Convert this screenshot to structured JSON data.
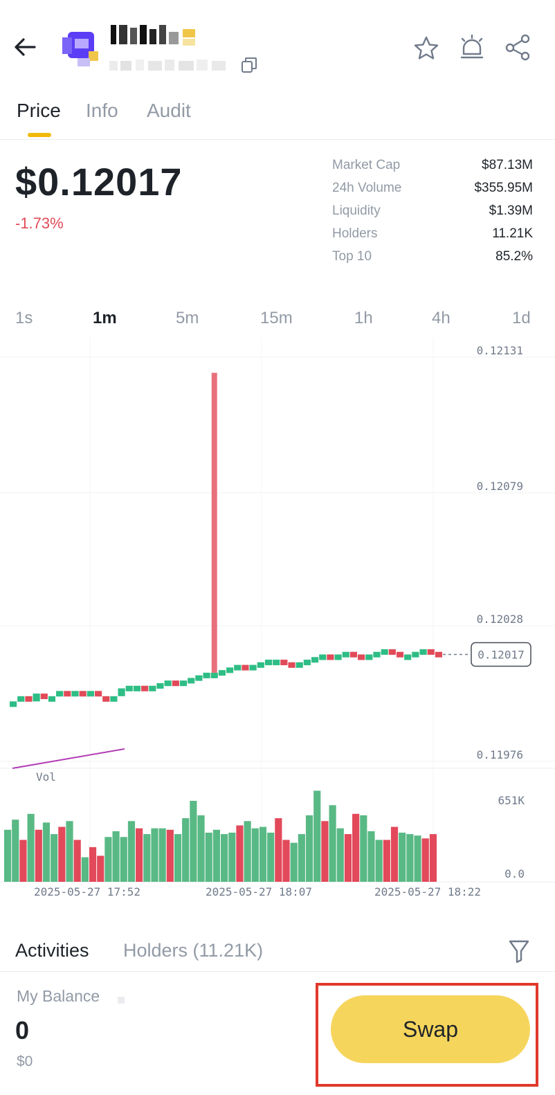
{
  "header": {
    "icons": [
      "back-arrow-icon",
      "star-icon",
      "alert-bell-icon",
      "share-icon",
      "copy-icon"
    ]
  },
  "tabs": [
    {
      "label": "Price",
      "active": true
    },
    {
      "label": "Info",
      "active": false
    },
    {
      "label": "Audit",
      "active": false
    }
  ],
  "price": {
    "value": "$0.12017",
    "change": "-1.73%",
    "change_color": "#e14a58"
  },
  "stats": [
    {
      "label": "Market Cap",
      "value": "$87.13M"
    },
    {
      "label": "24h Volume",
      "value": "$355.95M"
    },
    {
      "label": "Liquidity",
      "value": "$1.39M"
    },
    {
      "label": "Holders",
      "value": "11.21K"
    },
    {
      "label": "Top 10",
      "value": "85.2%"
    }
  ],
  "intervals": [
    {
      "label": "1s",
      "active": false
    },
    {
      "label": "1m",
      "active": true
    },
    {
      "label": "5m",
      "active": false
    },
    {
      "label": "15m",
      "active": false
    },
    {
      "label": "1h",
      "active": false
    },
    {
      "label": "4h",
      "active": false
    },
    {
      "label": "1d",
      "active": false
    }
  ],
  "chart_data": {
    "type": "candlestick",
    "y_ticks": [
      "0.12131",
      "0.12079",
      "0.12028",
      "0.11976"
    ],
    "ylim": [
      0.11976,
      0.12131
    ],
    "current_price_label": "0.12017",
    "volume_label": "Vol",
    "volume_ticks": [
      "651K",
      "0.0"
    ],
    "x_ticks": [
      "2025-05-27 17:52",
      "2025-05-27 18:07",
      "2025-05-27 18:22"
    ],
    "up_color": "#2ebd85",
    "down_color": "#e14a58",
    "closes": [
      0.11999,
      0.12001,
      0.11999,
      0.12002,
      0.12,
      0.12001,
      0.12003,
      0.12001,
      0.12003,
      0.12002,
      0.12003,
      0.12001,
      0.12,
      0.12001,
      0.12004,
      0.12005,
      0.12005,
      0.12004,
      0.12005,
      0.12006,
      0.12007,
      0.12006,
      0.12007,
      0.12008,
      0.12009,
      0.1201,
      0.1201,
      0.12011,
      0.12012,
      0.12013,
      0.12012,
      0.12013,
      0.12014,
      0.12015,
      0.12015,
      0.12014,
      0.12013,
      0.12014,
      0.12015,
      0.12016,
      0.12017,
      0.12016,
      0.12017,
      0.12018,
      0.12017,
      0.12016,
      0.12017,
      0.12018,
      0.12019,
      0.12018,
      0.12016,
      0.12017,
      0.12018,
      0.12019,
      0.12018,
      0.12017
    ],
    "spike_high": 0.12125,
    "spike_index": 26,
    "volumes": [
      360000,
      430000,
      290000,
      470000,
      360000,
      410000,
      330000,
      380000,
      420000,
      290000,
      170000,
      240000,
      180000,
      310000,
      350000,
      310000,
      420000,
      370000,
      330000,
      370000,
      370000,
      360000,
      330000,
      440000,
      560000,
      460000,
      340000,
      360000,
      330000,
      340000,
      390000,
      420000,
      370000,
      380000,
      340000,
      440000,
      290000,
      270000,
      330000,
      460000,
      630000,
      420000,
      530000,
      370000,
      330000,
      470000,
      460000,
      350000,
      290000,
      290000,
      380000,
      340000,
      330000,
      320000,
      300000,
      330000
    ],
    "volume_max": 651000
  },
  "activities": {
    "tabs": [
      {
        "label": "Activities",
        "active": true
      },
      {
        "label": "Holders (11.21K)",
        "active": false
      }
    ]
  },
  "balance": {
    "label": "My Balance",
    "value": "0",
    "usd": "$0"
  },
  "swap": {
    "label": "Swap",
    "color": "#f6d55c",
    "highlight_color": "#e0392b"
  }
}
